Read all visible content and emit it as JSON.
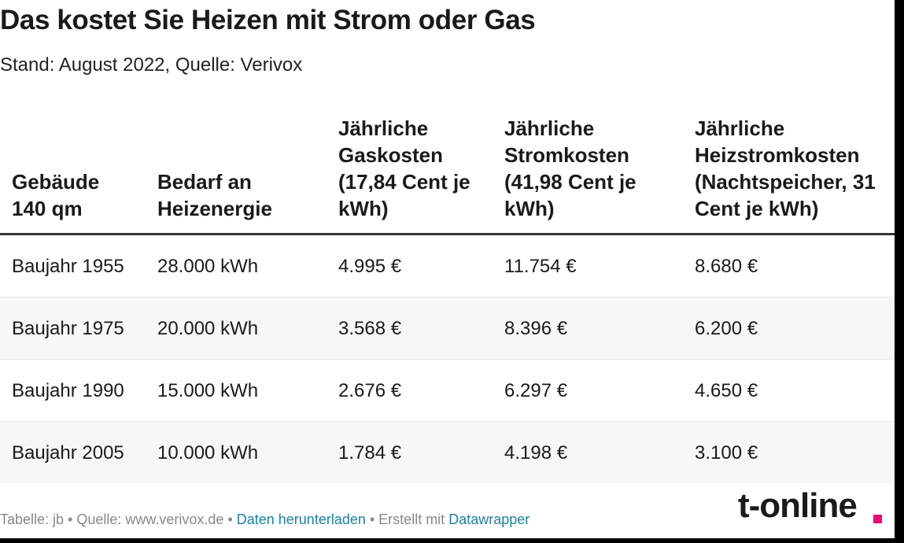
{
  "title": "Das kostet Sie Heizen mit Strom oder Gas",
  "subtitle": "Stand: August 2022, Quelle: Verivox",
  "chart_data": {
    "type": "table",
    "title": "Das kostet Sie Heizen mit Strom oder Gas",
    "subtitle": "Stand: August 2022, Quelle: Verivox",
    "columns": [
      "Gebäude 140 qm",
      "Bedarf an Heizenergie",
      "Jährliche Gaskosten (17,84 Cent je kWh)",
      "Jährliche Stromkosten (41,98 Cent je kWh)",
      "Jährliche Heizstromkosten (Nachtspeicher, 31 Cent je kWh)"
    ],
    "rows": [
      [
        "Baujahr 1955",
        "28.000 kWh",
        "4.995 €",
        "11.754 €",
        "8.680 €"
      ],
      [
        "Baujahr 1975",
        "20.000 kWh",
        "3.568 €",
        "8.396 €",
        "6.200 €"
      ],
      [
        "Baujahr 1990",
        "15.000 kWh",
        "2.676 €",
        "6.297 €",
        "4.650 €"
      ],
      [
        "Baujahr 2005",
        "10.000 kWh",
        "1.784 €",
        "4.198 €",
        "3.100 €"
      ]
    ]
  },
  "footer": {
    "prefix": "Tabelle: jb • Quelle: www.verivox.de • ",
    "download_link": "Daten herunterladen",
    "middle": " • Erstellt mit ",
    "tool_link": "Datawrapper"
  },
  "logo": {
    "text": "t-online",
    "dot_color": "#e60f6f"
  },
  "colors": {
    "link": "#1d81a2",
    "alt_row": "#f7f7f7",
    "header_rule": "#333333"
  }
}
